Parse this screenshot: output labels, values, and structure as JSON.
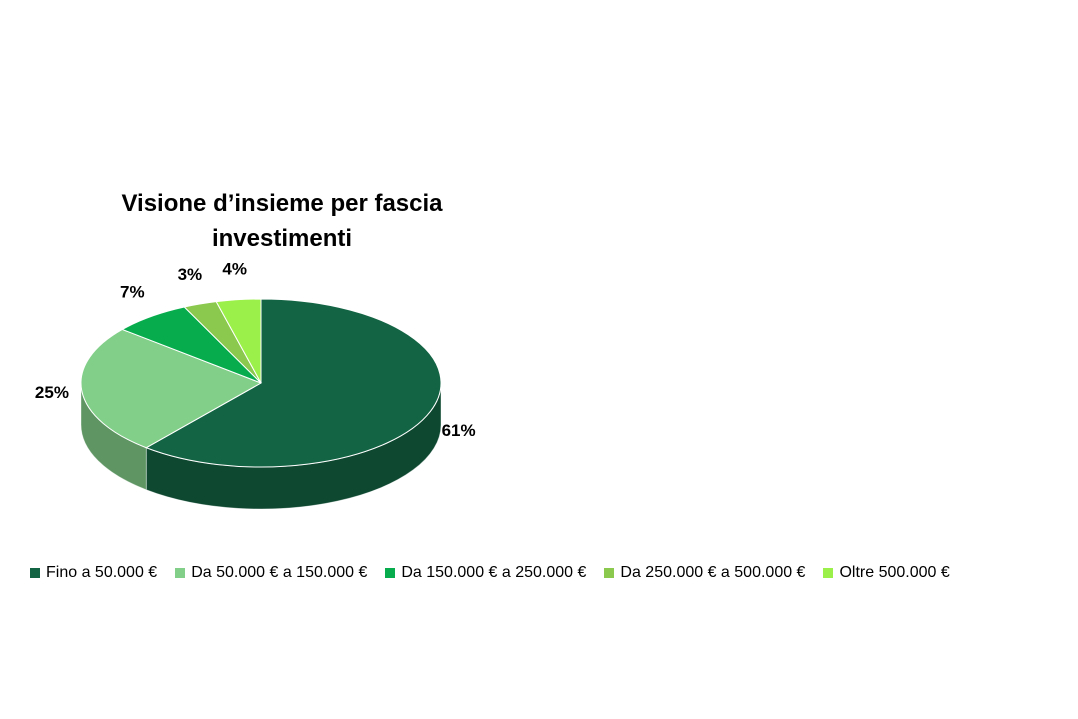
{
  "chart_data": {
    "type": "pie",
    "title_lines": [
      "Visione d’insieme per fascia",
      "investimenti"
    ],
    "categories": [
      "Fino a 50.000 €",
      "Da 50.000 € a 150.000 €",
      "Da 150.000 € a 250.000 €",
      "Da 250.000 € a 500.000 €",
      "Oltre 500.000 €"
    ],
    "values": [
      61,
      25,
      7,
      3,
      4
    ],
    "labels": [
      "61%",
      "25%",
      "7%",
      "3%",
      "4%"
    ],
    "colors": [
      "#136444",
      "#82cf89",
      "#07ad4d",
      "#8ac84e",
      "#9cf04a"
    ],
    "legend_position": "bottom"
  }
}
